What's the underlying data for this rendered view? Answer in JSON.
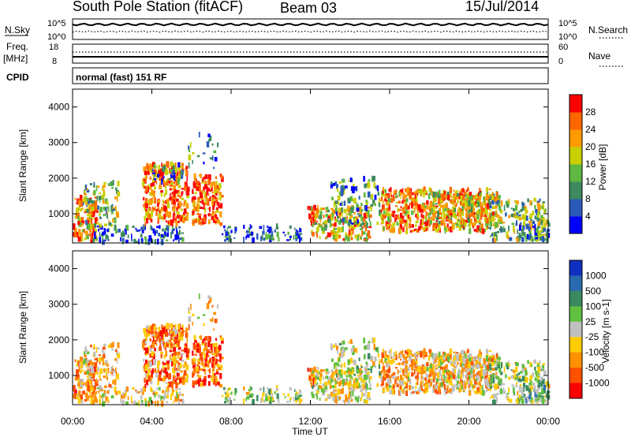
{
  "header": {
    "station": "South Pole Station (fitACF)",
    "beam": "Beam 03",
    "date": "15/Jul/2014"
  },
  "top_panels": {
    "nsky_label": "N.Sky",
    "nsky_ticks": [
      "10^5",
      "10^0"
    ],
    "nsearch_label": "N.Search",
    "nsearch_ticks": [
      "10^5",
      "10^0"
    ],
    "freq_label": "Freq.",
    "freq_unit": "[MHz]",
    "freq_ticks": [
      "18",
      "8"
    ],
    "nave_label": "Nave",
    "nave_ticks": [
      "60",
      "0"
    ],
    "cpid_label": "CPID",
    "cpid_value": "normal (fast) 151 RF"
  },
  "chart_data": [
    {
      "type": "heatmap",
      "name": "power",
      "ylabel": "Slant Range [km]",
      "xlabel": "",
      "ylim": [
        180,
        4500
      ],
      "xlim": [
        0,
        24
      ],
      "yticks": [
        "1000",
        "2000",
        "3000",
        "4000"
      ],
      "colorbar_label": "Power [dB]",
      "colorbar_ticks": [
        "4",
        "8",
        "12",
        "16",
        "20",
        "24",
        "28"
      ],
      "colorbar_colors": [
        "#0000ff",
        "#2a5ab8",
        "#3e8a5f",
        "#5fb840",
        "#c8d000",
        "#ff9a00",
        "#ff6600",
        "#ff0000"
      ]
    },
    {
      "type": "heatmap",
      "name": "velocity",
      "ylabel": "Slant Range [km]",
      "xlabel": "Time UT",
      "ylim": [
        180,
        4500
      ],
      "xlim": [
        0,
        24
      ],
      "yticks": [
        "1000",
        "2000",
        "3000",
        "4000"
      ],
      "xticks": [
        "00:00",
        "04:00",
        "08:00",
        "12:00",
        "16:00",
        "20:00",
        "00:00"
      ],
      "colorbar_label": "Velocity [m s-1]",
      "colorbar_ticks": [
        "1000",
        "500",
        "100",
        "25",
        "-25",
        "-100",
        "-500",
        "-1000"
      ],
      "colorbar_colors": [
        "#1030c0",
        "#2a6ab0",
        "#3a8a60",
        "#60c040",
        "#c0c0c0",
        "#ffcc00",
        "#ff9000",
        "#ff5000",
        "#ff0000"
      ]
    }
  ]
}
